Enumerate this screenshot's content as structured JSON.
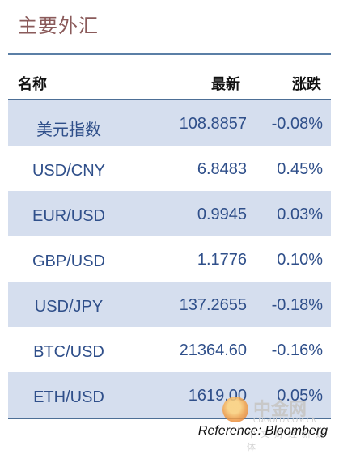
{
  "title": "主要外汇",
  "header": {
    "name": "名称",
    "last": "最新",
    "change": "涨跌"
  },
  "rows": [
    {
      "name": "美元指数",
      "last": "108.8857",
      "change": "-0.08%"
    },
    {
      "name": "USD/CNY",
      "last": "6.8483",
      "change": "0.45%"
    },
    {
      "name": "EUR/USD",
      "last": "0.9945",
      "change": "0.03%"
    },
    {
      "name": "GBP/USD",
      "last": "1.1776",
      "change": "0.10%"
    },
    {
      "name": "USD/JPY",
      "last": "137.2655",
      "change": "-0.18%"
    },
    {
      "name": "BTC/USD",
      "last": "21364.60",
      "change": "-0.16%"
    },
    {
      "name": "ETH/USD",
      "last": "1619.00",
      "change": "0.05%"
    }
  ],
  "reference": "Reference: Bloomberg",
  "watermark": {
    "main": "中金网",
    "domain": "CNGOLD.COM.CN",
    "sub": "中文财经新媒体"
  },
  "colors": {
    "title": "#8a5a5a",
    "text": "#2f4f8a",
    "shade": "#d5deee",
    "rule": "#4d6f96"
  }
}
